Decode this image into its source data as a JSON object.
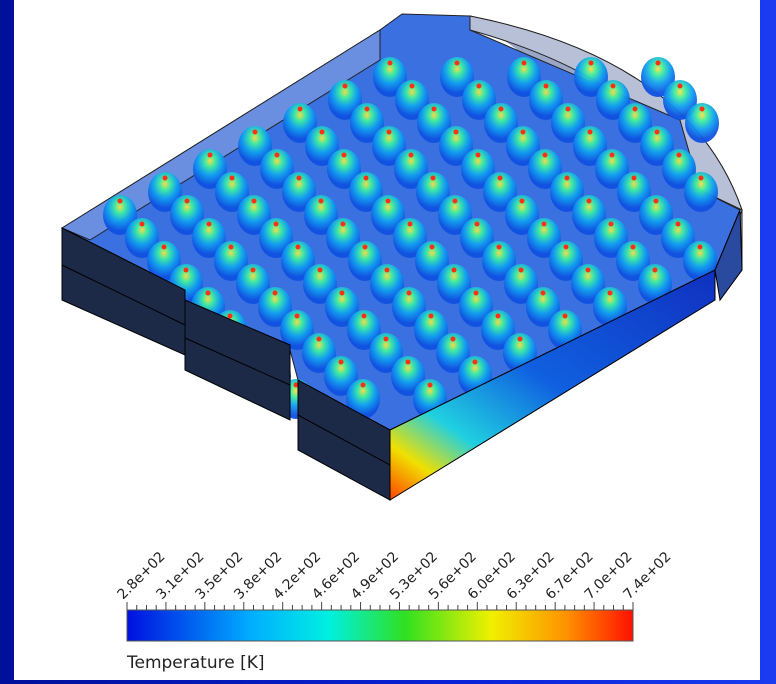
{
  "colorbar": {
    "title": "Temperature [K]",
    "labels": [
      "2.8e+02",
      "3.1e+02",
      "3.5e+02",
      "3.8e+02",
      "4.2e+02",
      "4.6e+02",
      "4.9e+02",
      "5.3e+02",
      "5.6e+02",
      "6.0e+02",
      "6.3e+02",
      "6.7e+02",
      "7.0e+02",
      "7.4e+02"
    ]
  }
}
